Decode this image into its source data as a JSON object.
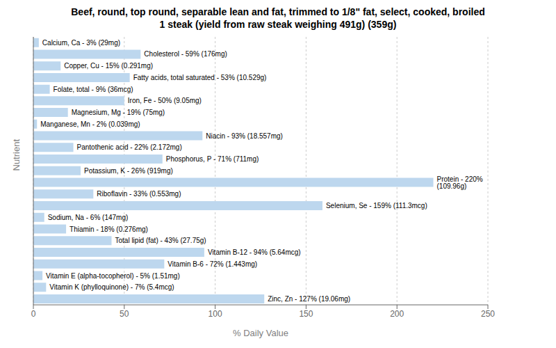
{
  "chart_data": {
    "type": "bar",
    "orientation": "horizontal",
    "title": "Beef, round, top round, separable lean and fat, trimmed to 1/8\" fat, select, cooked, broiled\n1 steak (yield from raw steak weighing 491g) (359g)",
    "xlabel": "% Daily Value",
    "ylabel": "Nutrient",
    "categories": [
      "Calcium, Ca - 3% (29mg)",
      "Cholesterol - 59% (176mg)",
      "Copper, Cu - 15% (0.291mg)",
      "Fatty acids, total saturated - 53% (10.529g)",
      "Folate, total - 9% (36mcg)",
      "Iron, Fe - 50% (9.05mg)",
      "Magnesium, Mg - 19% (75mg)",
      "Manganese, Mn - 2% (0.039mg)",
      "Niacin - 93% (18.557mg)",
      "Pantothenic acid - 22% (2.172mg)",
      "Phosphorus, P - 71% (711mg)",
      "Potassium, K - 26% (919mg)",
      "Protein - 220% (109.96g)",
      "Riboflavin - 33% (0.553mg)",
      "Selenium, Se - 159% (111.3mcg)",
      "Sodium, Na - 6% (147mg)",
      "Thiamin - 18% (0.276mg)",
      "Total lipid (fat) - 43% (27.75g)",
      "Vitamin B-12 - 94% (5.64mcg)",
      "Vitamin B-6 - 72% (1.443mg)",
      "Vitamin E (alpha-tocopherol) - 5% (1.51mg)",
      "Vitamin K (phylloquinone) - 7% (5.4mcg)",
      "Zinc, Zn - 127% (19.06mg)"
    ],
    "values": [
      3,
      59,
      15,
      53,
      9,
      50,
      19,
      2,
      93,
      22,
      71,
      26,
      220,
      33,
      159,
      6,
      18,
      43,
      94,
      72,
      5,
      7,
      127
    ],
    "color": "#bdd7ee",
    "xlim": [
      0,
      250
    ],
    "xticks": [
      0,
      50,
      100,
      150,
      200,
      250
    ],
    "grid": true,
    "tick_labels": "x"
  }
}
